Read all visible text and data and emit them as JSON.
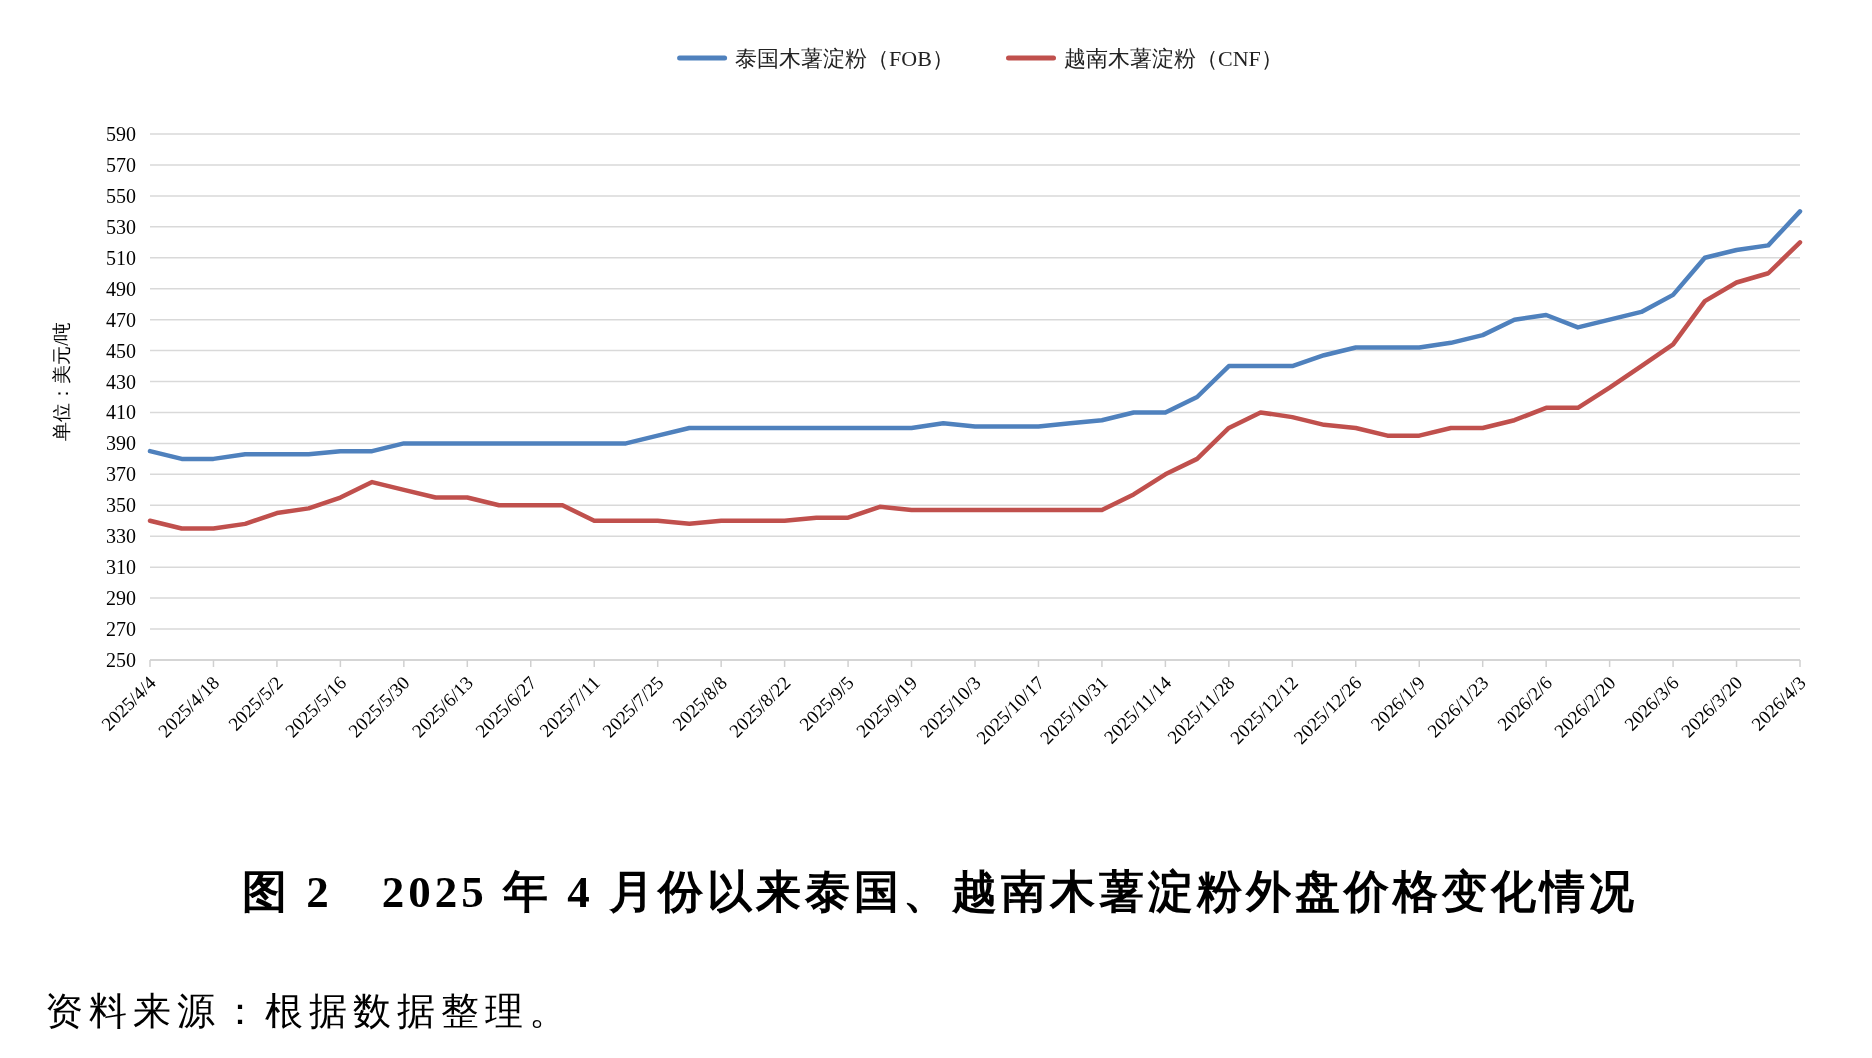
{
  "chart_data": {
    "type": "line",
    "title": "图 2　2025 年 4 月份以来泰国、越南木薯淀粉外盘价格变化情况",
    "ylabel": "单位：美元/吨",
    "annotations": [
      "资料来源：根据数据整理。"
    ],
    "categories": [
      "2025/4/4",
      null,
      "2025/4/18",
      null,
      "2025/5/2",
      null,
      "2025/5/16",
      null,
      "2025/5/30",
      null,
      "2025/6/13",
      null,
      "2025/6/27",
      null,
      "2025/7/11",
      null,
      "2025/7/25",
      null,
      "2025/8/8",
      null,
      "2025/8/22",
      null,
      "2025/9/5",
      null,
      "2025/9/19",
      null,
      "2025/10/3",
      null,
      "2025/10/17",
      null,
      "2025/10/31",
      null,
      "2025/11/14",
      null,
      "2025/11/28",
      null,
      "2025/12/12",
      null,
      "2025/12/26",
      null,
      "2026/1/9",
      null,
      "2026/1/23",
      null,
      "2026/2/6",
      null,
      "2026/2/20",
      null,
      "2026/3/6",
      null,
      "2026/3/20",
      null,
      "2026/4/3"
    ],
    "series": [
      {
        "name": "泰国木薯淀粉（FOB）",
        "color": "#4f81bd",
        "values": [
          385,
          380,
          380,
          383,
          383,
          383,
          385,
          385,
          390,
          390,
          390,
          390,
          390,
          390,
          390,
          390,
          395,
          400,
          400,
          400,
          400,
          400,
          400,
          400,
          400,
          403,
          401,
          401,
          401,
          403,
          405,
          410,
          410,
          420,
          440,
          440,
          440,
          447,
          452,
          452,
          452,
          455,
          460,
          470,
          473,
          465,
          470,
          475,
          486,
          510,
          515,
          518,
          540
        ]
      },
      {
        "name": "越南木薯淀粉（CNF）",
        "color": "#c0504d",
        "values": [
          340,
          335,
          335,
          338,
          345,
          348,
          355,
          365,
          360,
          355,
          355,
          350,
          350,
          350,
          340,
          340,
          340,
          338,
          340,
          340,
          340,
          342,
          342,
          349,
          347,
          347,
          347,
          347,
          347,
          347,
          347,
          357,
          370,
          380,
          400,
          410,
          407,
          402,
          400,
          395,
          395,
          400,
          400,
          405,
          413,
          413,
          426,
          440,
          454,
          482,
          494,
          500,
          520
        ]
      }
    ],
    "ylim": [
      250,
      590
    ],
    "yticks": [
      250,
      270,
      290,
      310,
      330,
      350,
      370,
      390,
      410,
      430,
      450,
      470,
      490,
      510,
      530,
      550,
      570,
      590
    ],
    "grid": "y",
    "legend": "top",
    "line_style": "solid"
  }
}
